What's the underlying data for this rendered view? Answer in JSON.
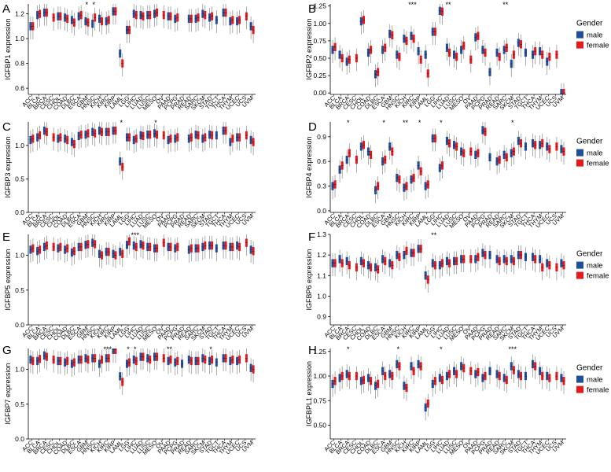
{
  "figure": {
    "colors": {
      "male": "#1f4e9c",
      "female": "#e8191c",
      "whisker": "#8a8a8a",
      "axis": "#000000"
    },
    "categories": [
      "ACC",
      "BLCA",
      "BRCA",
      "CESC",
      "CHOL",
      "COAD",
      "DLBC",
      "ESCA",
      "GBM",
      "HNSC",
      "KICH",
      "KIRC",
      "KIRP",
      "LAML",
      "LGG",
      "LIHC",
      "LUAD",
      "LUSC",
      "MESO",
      "OV",
      "PAAD",
      "PCPG",
      "PRAD",
      "READ",
      "SARC",
      "SKCM",
      "STAD",
      "TGCT",
      "THCA",
      "THYM",
      "UCEC",
      "UCS",
      "UVM"
    ],
    "legend": {
      "title": "Gender",
      "male_label": "male",
      "female_label": "female"
    }
  },
  "chart_data": [
    {
      "type": "box",
      "panel": "A",
      "ylabel": "IGFBP1 expression",
      "ylim": [
        0.55,
        1.28
      ],
      "yticks": [
        "0.6",
        "0.8",
        "1.0",
        "1.2"
      ],
      "ytick_values": [
        0.6,
        0.8,
        1.0,
        1.2
      ],
      "legend": false,
      "series": [
        {
          "name": "male",
          "medians": [
            1.1,
            1.19,
            1.21,
            null,
            1.18,
            1.17,
            1.15,
            1.18,
            1.14,
            1.12,
            1.16,
            1.14,
            1.22,
            0.88,
            1.07,
            1.2,
            1.19,
            1.19,
            1.2,
            null,
            1.18,
            1.16,
            null,
            1.16,
            1.16,
            1.2,
            1.17,
            1.15,
            1.21,
            1.14,
            1.14,
            null,
            1.1
          ]
        },
        {
          "name": "female",
          "medians": [
            1.1,
            1.2,
            1.21,
            1.17,
            1.18,
            1.16,
            1.13,
            1.19,
            1.13,
            1.17,
            1.14,
            1.15,
            1.22,
            0.8,
            1.07,
            1.19,
            1.18,
            1.19,
            1.21,
            1.19,
            1.18,
            1.17,
            null,
            1.16,
            1.17,
            1.19,
            1.18,
            null,
            1.21,
            1.15,
            1.15,
            1.18,
            1.07
          ]
        }
      ],
      "significance": [
        {
          "index": 8,
          "label": "*"
        },
        {
          "index": 9,
          "label": "*"
        }
      ]
    },
    {
      "type": "box",
      "panel": "B",
      "ylabel": "IGFBP2 expression",
      "ylim": [
        -0.02,
        1.28
      ],
      "yticks": [
        "0.00",
        "0.25",
        "0.50",
        "0.75",
        "1.00",
        "1.25"
      ],
      "ytick_values": [
        0,
        0.25,
        0.5,
        0.75,
        1.0,
        1.25
      ],
      "legend": true,
      "series": [
        {
          "name": "male",
          "medians": [
            0.62,
            0.55,
            0.45,
            null,
            1.03,
            0.58,
            0.27,
            0.62,
            0.85,
            0.55,
            0.78,
            0.82,
            0.6,
            0.55,
            0.88,
            1.18,
            0.65,
            0.55,
            0.62,
            null,
            0.8,
            0.62,
            0.3,
            0.58,
            0.62,
            0.42,
            0.72,
            0.58,
            0.55,
            0.6,
            0.45,
            null,
            0.0
          ]
        },
        {
          "name": "female",
          "medians": [
            0.66,
            0.5,
            0.48,
            0.5,
            1.05,
            0.62,
            0.3,
            0.65,
            0.83,
            0.52,
            0.75,
            0.78,
            0.48,
            0.28,
            0.88,
            1.17,
            0.58,
            0.52,
            0.68,
            0.48,
            0.82,
            0.58,
            null,
            0.52,
            0.65,
            0.55,
            0.7,
            null,
            0.6,
            0.55,
            0.52,
            0.55,
            0.0
          ]
        }
      ],
      "significance": [
        {
          "index": 11,
          "label": "***"
        },
        {
          "index": 16,
          "label": "**"
        },
        {
          "index": 24,
          "label": "**"
        }
      ]
    },
    {
      "type": "box",
      "panel": "C",
      "ylabel": "IGFBP3 expression",
      "ylim": [
        0.0,
        1.35
      ],
      "yticks": [
        "0.0",
        "0.5",
        "1.0"
      ],
      "ytick_values": [
        0,
        0.5,
        1.0
      ],
      "legend": false,
      "series": [
        {
          "name": "male",
          "medians": [
            1.08,
            1.12,
            1.22,
            null,
            1.1,
            1.1,
            1.05,
            1.14,
            1.16,
            1.2,
            1.22,
            1.2,
            1.22,
            0.76,
            1.12,
            1.08,
            1.15,
            1.16,
            1.18,
            null,
            1.08,
            1.1,
            null,
            1.1,
            1.16,
            1.1,
            1.16,
            1.15,
            1.22,
            1.05,
            1.12,
            null,
            1.08
          ]
        },
        {
          "name": "female",
          "medians": [
            1.1,
            1.15,
            1.2,
            1.12,
            1.12,
            1.08,
            1.02,
            1.16,
            1.18,
            1.18,
            1.2,
            1.2,
            1.22,
            0.68,
            1.12,
            1.1,
            1.14,
            1.16,
            1.16,
            1.15,
            1.1,
            1.12,
            null,
            1.12,
            1.15,
            1.12,
            1.15,
            null,
            1.22,
            1.1,
            1.12,
            1.15,
            1.05
          ]
        }
      ],
      "significance": [
        {
          "index": 13,
          "label": "*"
        },
        {
          "index": 18,
          "label": "*"
        }
      ]
    },
    {
      "type": "box",
      "panel": "D",
      "ylabel": "IGFBP4 expression",
      "ylim": [
        -0.02,
        1.08
      ],
      "yticks": [
        "0.0",
        "0.3",
        "0.6",
        "0.9"
      ],
      "ytick_values": [
        0,
        0.3,
        0.6,
        0.9
      ],
      "legend": true,
      "series": [
        {
          "name": "male",
          "medians": [
            0.3,
            0.5,
            0.62,
            null,
            0.78,
            0.72,
            0.25,
            0.6,
            0.78,
            0.4,
            0.28,
            0.38,
            0.55,
            0.3,
            0.88,
            0.52,
            0.85,
            0.8,
            0.72,
            null,
            0.68,
            0.98,
            0.65,
            0.6,
            0.68,
            0.7,
            0.85,
            0.78,
            0.82,
            0.8,
            0.78,
            null,
            0.75
          ]
        },
        {
          "name": "female",
          "medians": [
            0.32,
            0.55,
            0.7,
            0.62,
            0.8,
            0.68,
            0.3,
            0.62,
            0.72,
            0.38,
            0.3,
            0.4,
            0.48,
            0.32,
            0.88,
            0.55,
            0.82,
            0.78,
            0.7,
            0.72,
            0.7,
            0.96,
            null,
            0.62,
            0.65,
            0.72,
            0.82,
            null,
            0.8,
            0.82,
            0.75,
            0.78,
            0.72
          ]
        }
      ],
      "significance": [
        {
          "index": 2,
          "label": "*"
        },
        {
          "index": 7,
          "label": "*"
        },
        {
          "index": 10,
          "label": "**"
        },
        {
          "index": 12,
          "label": "*"
        },
        {
          "index": 15,
          "label": "*"
        },
        {
          "index": 25,
          "label": "*"
        }
      ]
    },
    {
      "type": "box",
      "panel": "E",
      "ylabel": "IGFBP5 expression",
      "ylim": [
        0.0,
        1.3
      ],
      "yticks": [
        "0.0",
        "0.5",
        "1.0"
      ],
      "ytick_values": [
        0,
        0.5,
        1.0
      ],
      "legend": false,
      "series": [
        {
          "name": "male",
          "medians": [
            1.08,
            1.06,
            1.12,
            null,
            1.1,
            1.08,
            1.04,
            1.12,
            1.15,
            1.18,
            1.02,
            1.05,
            1.02,
            1.05,
            1.15,
            1.14,
            1.16,
            1.12,
            1.1,
            null,
            1.12,
            1.1,
            null,
            1.08,
            1.1,
            1.12,
            1.14,
            1.1,
            1.14,
            1.12,
            1.14,
            null,
            1.08
          ]
        },
        {
          "name": "female",
          "medians": [
            1.1,
            1.08,
            1.14,
            1.12,
            1.12,
            1.1,
            1.06,
            1.12,
            1.16,
            1.16,
            1.0,
            1.05,
            1.0,
            1.02,
            1.2,
            1.12,
            1.14,
            1.12,
            1.1,
            1.18,
            1.12,
            1.12,
            null,
            1.1,
            1.1,
            1.14,
            1.14,
            null,
            1.14,
            1.12,
            1.12,
            1.18,
            1.06
          ]
        }
      ],
      "significance": [
        {
          "index": 15,
          "label": "***"
        }
      ]
    },
    {
      "type": "box",
      "panel": "F",
      "ylabel": "IGFBP6 expression",
      "ylim": [
        0.86,
        1.3
      ],
      "yticks": [
        "0.9",
        "1.0",
        "1.1",
        "1.2",
        "1.3"
      ],
      "ytick_values": [
        0.9,
        1.0,
        1.1,
        1.2,
        1.3
      ],
      "legend": true,
      "series": [
        {
          "name": "male",
          "medians": [
            1.16,
            1.18,
            1.17,
            null,
            1.17,
            1.15,
            1.14,
            1.18,
            1.16,
            1.2,
            1.2,
            1.21,
            1.23,
            1.1,
            1.16,
            1.15,
            1.17,
            1.17,
            1.18,
            null,
            1.18,
            1.21,
            1.2,
            1.18,
            1.18,
            1.18,
            1.2,
            1.19,
            1.19,
            1.18,
            1.16,
            null,
            1.16
          ]
        },
        {
          "name": "female",
          "medians": [
            1.16,
            1.16,
            1.15,
            1.14,
            1.16,
            1.14,
            1.13,
            1.17,
            1.15,
            1.19,
            1.22,
            1.21,
            1.23,
            1.08,
            1.15,
            1.16,
            1.16,
            1.17,
            1.18,
            1.18,
            1.19,
            1.2,
            null,
            1.17,
            1.17,
            1.17,
            1.2,
            null,
            1.18,
            1.14,
            1.15,
            1.14,
            1.15
          ]
        }
      ],
      "significance": [
        {
          "index": 14,
          "label": "**"
        }
      ]
    },
    {
      "type": "box",
      "panel": "G",
      "ylabel": "IGFBP7 expression",
      "ylim": [
        0.0,
        1.3
      ],
      "yticks": [
        "0.0",
        "0.5",
        "1.0"
      ],
      "ytick_values": [
        0,
        0.5,
        1.0
      ],
      "legend": false,
      "series": [
        {
          "name": "male",
          "medians": [
            1.14,
            1.12,
            1.2,
            null,
            1.12,
            1.1,
            1.08,
            1.14,
            1.16,
            1.16,
            1.08,
            1.16,
            1.28,
            0.9,
            1.08,
            1.14,
            1.18,
            1.16,
            1.18,
            null,
            1.12,
            1.1,
            1.08,
            1.14,
            1.12,
            1.16,
            1.12,
            1.1,
            1.16,
            1.12,
            1.12,
            null,
            1.02
          ]
        },
        {
          "name": "female",
          "medians": [
            1.12,
            1.15,
            1.18,
            1.14,
            1.12,
            1.12,
            1.1,
            1.14,
            1.14,
            1.16,
            1.14,
            1.16,
            1.28,
            0.82,
            1.1,
            1.12,
            1.18,
            1.14,
            1.18,
            1.16,
            1.14,
            1.12,
            null,
            1.12,
            1.12,
            1.14,
            1.14,
            null,
            1.16,
            1.14,
            1.14,
            1.16,
            1.0
          ]
        }
      ],
      "significance": [
        {
          "index": 11,
          "label": "***"
        },
        {
          "index": 14,
          "label": "*"
        },
        {
          "index": 15,
          "label": "*"
        },
        {
          "index": 20,
          "label": "**"
        },
        {
          "index": 26,
          "label": "*"
        }
      ]
    },
    {
      "type": "box",
      "panel": "H",
      "ylabel": "IGFBPL1 expression",
      "ylim": [
        0.36,
        1.28
      ],
      "yticks": [
        "0.50",
        "0.75",
        "1.00",
        "1.25"
      ],
      "ytick_values": [
        0.5,
        0.75,
        1.0,
        1.25
      ],
      "legend": true,
      "series": [
        {
          "name": "male",
          "medians": [
            0.92,
            0.98,
            1.02,
            null,
            0.95,
            0.98,
            0.9,
            1.05,
            1.02,
            1.12,
            0.9,
            1.1,
            1.12,
            0.68,
            0.92,
            0.98,
            1.0,
            1.05,
            1.1,
            null,
            1.02,
            0.98,
            1.05,
            1.02,
            0.98,
            1.1,
            1.02,
            1.0,
            1.12,
            1.05,
            1.0,
            null,
            0.98
          ]
        },
        {
          "name": "female",
          "medians": [
            0.95,
            1.0,
            1.0,
            1.0,
            0.96,
            0.95,
            0.92,
            1.0,
            1.0,
            1.1,
            0.88,
            1.05,
            1.1,
            0.72,
            0.95,
            0.96,
            1.02,
            1.02,
            1.08,
            1.05,
            1.04,
            1.0,
            null,
            1.0,
            0.96,
            1.06,
            1.0,
            null,
            1.1,
            1.0,
            0.98,
            1.0,
            0.95
          ]
        }
      ],
      "significance": [
        {
          "index": 2,
          "label": "*"
        },
        {
          "index": 9,
          "label": "*"
        },
        {
          "index": 15,
          "label": "*"
        },
        {
          "index": 25,
          "label": "***"
        }
      ]
    }
  ]
}
